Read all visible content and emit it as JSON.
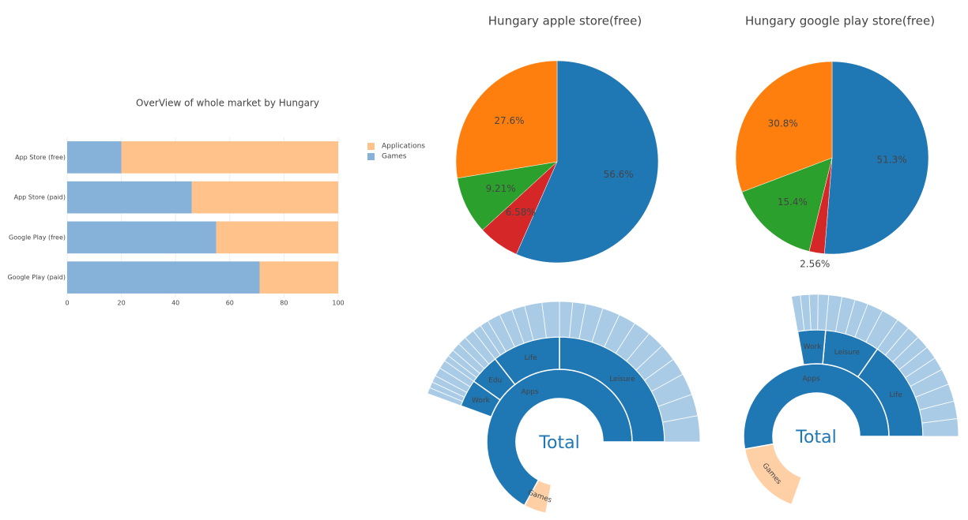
{
  "chart_data": [
    {
      "type": "bar",
      "orientation": "horizontal",
      "stacked": true,
      "title": "OverView of whole market by Hungary",
      "categories": [
        "App Store (free)",
        "App Store (paid)",
        "Google Play (free)",
        "Google Play (paid)"
      ],
      "series": [
        {
          "name": "Games",
          "color": "#86b1d9",
          "values": [
            20,
            46,
            55,
            71
          ]
        },
        {
          "name": "Applications",
          "color": "#ffc28a",
          "values": [
            80,
            54,
            45,
            29
          ]
        }
      ],
      "xlim": [
        0,
        100
      ],
      "xticks": [
        0,
        20,
        40,
        60,
        80,
        100
      ],
      "grid": true,
      "legend": "right"
    },
    {
      "type": "pie",
      "title": "Hungary apple store(free)",
      "values": [
        56.6,
        6.58,
        9.21,
        27.6
      ],
      "value_labels": [
        "56.6%",
        "6.58%",
        "9.21%",
        "27.6%"
      ],
      "colors": [
        "#1f77b4",
        "#d62728",
        "#2ca02c",
        "#ff7f0e"
      ]
    },
    {
      "type": "pie",
      "title": "Hungary google play store(free)",
      "values": [
        51.3,
        2.56,
        15.4,
        30.8
      ],
      "value_labels": [
        "51.3%",
        "2.56%",
        "15.4%",
        "30.8%"
      ],
      "colors": [
        "#1f77b4",
        "#d62728",
        "#2ca02c",
        "#ff7f0e"
      ]
    },
    {
      "type": "sunburst",
      "label": "Total",
      "value": 100,
      "color": "#1f77b4",
      "leaf_color": "#a9cbe6",
      "children": [
        {
          "label": "Apps",
          "value": 67,
          "children": [
            {
              "label": "Leisure",
              "value": 25,
              "leaves": [
                3,
                2.5,
                2.5,
                2,
                2,
                2,
                2,
                2,
                2,
                2,
                1.5,
                1.5
              ]
            },
            {
              "label": "Life",
              "value": 10.5,
              "leaves": [
                2,
                2,
                1.5,
                1.5,
                1.5,
                1,
                1
              ]
            },
            {
              "label": "Edu",
              "value": 4.7,
              "leaves": [
                1.2,
                1,
                1,
                0.8,
                0.7
              ]
            },
            {
              "label": "Work",
              "value": 4.2,
              "leaves": [
                1,
                1,
                0.8,
                0.7,
                0.7
              ]
            }
          ]
        },
        {
          "label": "Games",
          "value": 5,
          "color": "#ffd0a6"
        }
      ]
    },
    {
      "type": "sunburst",
      "label": "Total",
      "value": 100,
      "color": "#1f77b4",
      "leaf_color": "#a9cbe6",
      "children": [
        {
          "label": "Apps",
          "value": 52.8,
          "children": [
            {
              "label": "Life",
              "value": 15.3,
              "leaves": [
                2,
                2,
                2,
                1.8,
                1.5,
                1.5,
                1.5,
                1.5,
                1.5
              ]
            },
            {
              "label": "Leisure",
              "value": 8.3,
              "leaves": [
                2,
                1.8,
                1.5,
                1.5,
                1.5
              ]
            },
            {
              "label": "Work",
              "value": 4.2,
              "leaves": [
                1.2,
                1,
                1,
                1
              ]
            }
          ]
        },
        {
          "label": "Games",
          "value": 16.7,
          "color": "#ffd0a6"
        }
      ]
    }
  ]
}
